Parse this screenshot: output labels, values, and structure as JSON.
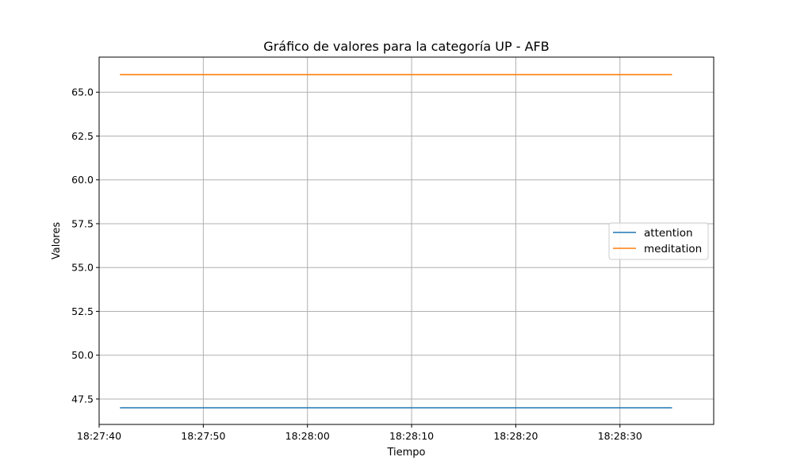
{
  "chart_data": {
    "type": "line",
    "title": "Gráfico de valores para la categoría UP - AFB",
    "xlabel": "Tiempo",
    "ylabel": "Valores",
    "x_range": [
      "18:27:40",
      "18:28:39"
    ],
    "ylim": [
      46.05,
      67.0
    ],
    "x_ticks": [
      "18:27:40",
      "18:27:50",
      "18:28:00",
      "18:28:10",
      "18:28:20",
      "18:28:30"
    ],
    "y_ticks": [
      "47.5",
      "50.0",
      "52.5",
      "55.0",
      "57.5",
      "60.0",
      "62.5",
      "65.0"
    ],
    "x": [
      "18:27:42",
      "18:28:35"
    ],
    "series": [
      {
        "name": "attention",
        "color": "#1f77b4",
        "values": [
          47,
          47
        ]
      },
      {
        "name": "meditation",
        "color": "#ff7f0e",
        "values": [
          66,
          66
        ]
      }
    ],
    "grid": true,
    "legend_position": "center-right"
  }
}
